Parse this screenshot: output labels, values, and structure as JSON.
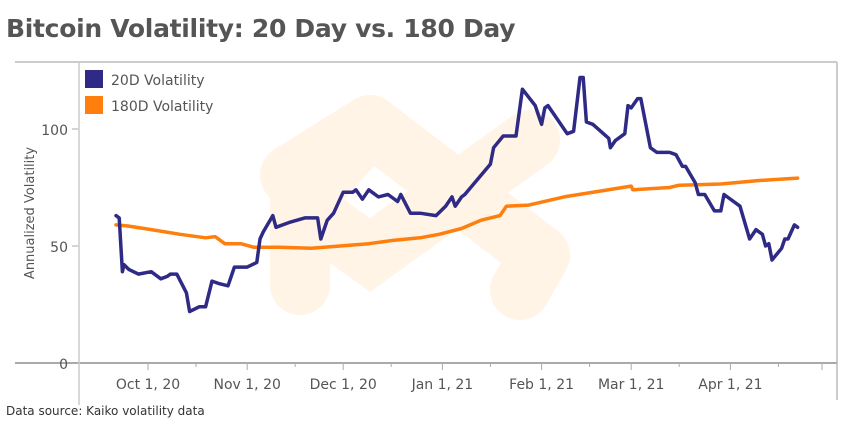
{
  "chart_data": {
    "type": "line",
    "title": "Bitcoin Volatility: 20 Day vs. 180 Day",
    "ylabel": "Annualized Volatility",
    "xlabel": "",
    "ylim": [
      0,
      125
    ],
    "yticks": [
      0,
      50,
      100
    ],
    "x_unit": "days since 2020-09-21",
    "xlim": [
      -10,
      227
    ],
    "xticks": [
      {
        "day": 10,
        "label": "Oct 1, 20"
      },
      {
        "day": 41,
        "label": "Nov 1, 20"
      },
      {
        "day": 71,
        "label": "Dec 1, 20"
      },
      {
        "day": 102,
        "label": "Jan 1, 21"
      },
      {
        "day": 133,
        "label": "Feb 1, 21"
      },
      {
        "day": 161,
        "label": "Mar 1, 21"
      },
      {
        "day": 192,
        "label": "Apr 1, 21"
      }
    ],
    "legend_position": "top-left",
    "series": [
      {
        "name": "20D Volatility",
        "color": "#2e2a86",
        "x": [
          0,
          1,
          2,
          2.5,
          4,
          7,
          11,
          14,
          16,
          17,
          19,
          22,
          23,
          26,
          28,
          30,
          32,
          35,
          37,
          41,
          44,
          45,
          46,
          49,
          50,
          54,
          59,
          63,
          64,
          66,
          68,
          71,
          74,
          75,
          77,
          79,
          82,
          85,
          88,
          89,
          92,
          95,
          100,
          103,
          105,
          106,
          108,
          109,
          117,
          118,
          121,
          125,
          127,
          131,
          132,
          133,
          134,
          135,
          138,
          140,
          141,
          143,
          145,
          146,
          147,
          149,
          154,
          154.5,
          156,
          159,
          160,
          161,
          163,
          164,
          167,
          169,
          173,
          175,
          177,
          178,
          181,
          182,
          184,
          187,
          189,
          190,
          193,
          195,
          198,
          200,
          202,
          203,
          204,
          205,
          208,
          209,
          210,
          212,
          213
        ],
        "y": [
          63,
          62,
          39,
          42,
          40,
          38,
          39,
          36,
          37,
          38,
          38,
          30,
          22,
          24,
          24,
          35,
          34,
          33,
          41,
          41,
          43,
          53,
          56,
          63,
          58,
          60,
          62,
          62,
          53,
          61,
          64,
          73,
          73,
          74,
          70,
          74,
          71,
          72,
          69,
          72,
          64,
          64,
          63,
          67,
          71,
          67,
          71,
          72,
          85,
          92,
          97,
          97,
          117,
          110,
          106,
          102,
          109,
          110,
          104,
          100,
          98,
          99,
          122,
          122,
          103,
          102,
          96,
          92,
          95,
          98,
          110,
          109,
          113,
          113,
          92,
          90,
          90,
          89,
          84,
          84,
          77,
          72,
          72,
          65,
          65,
          72,
          69,
          67,
          53,
          57,
          55,
          50,
          51,
          44,
          49,
          53,
          53,
          59,
          58
        ]
      },
      {
        "name": "180D Volatility",
        "color": "#ff7f0e",
        "x": [
          0,
          4,
          11,
          20,
          28,
          31,
          34,
          39,
          43,
          51,
          61,
          70,
          79,
          87,
          95,
          101,
          108,
          114,
          120,
          122,
          129,
          140,
          161,
          161.5,
          173,
          176,
          189,
          201,
          213
        ],
        "y": [
          59,
          58.5,
          57,
          55,
          53.5,
          54,
          51,
          51,
          49.5,
          49.5,
          49,
          50,
          51,
          52.5,
          53.5,
          55,
          57.5,
          61,
          63,
          67,
          67.5,
          71,
          75.6,
          74,
          75,
          76,
          76.5,
          78,
          79
        ]
      }
    ]
  },
  "footer": {
    "source": "Data source: Kaiko volatility data"
  }
}
